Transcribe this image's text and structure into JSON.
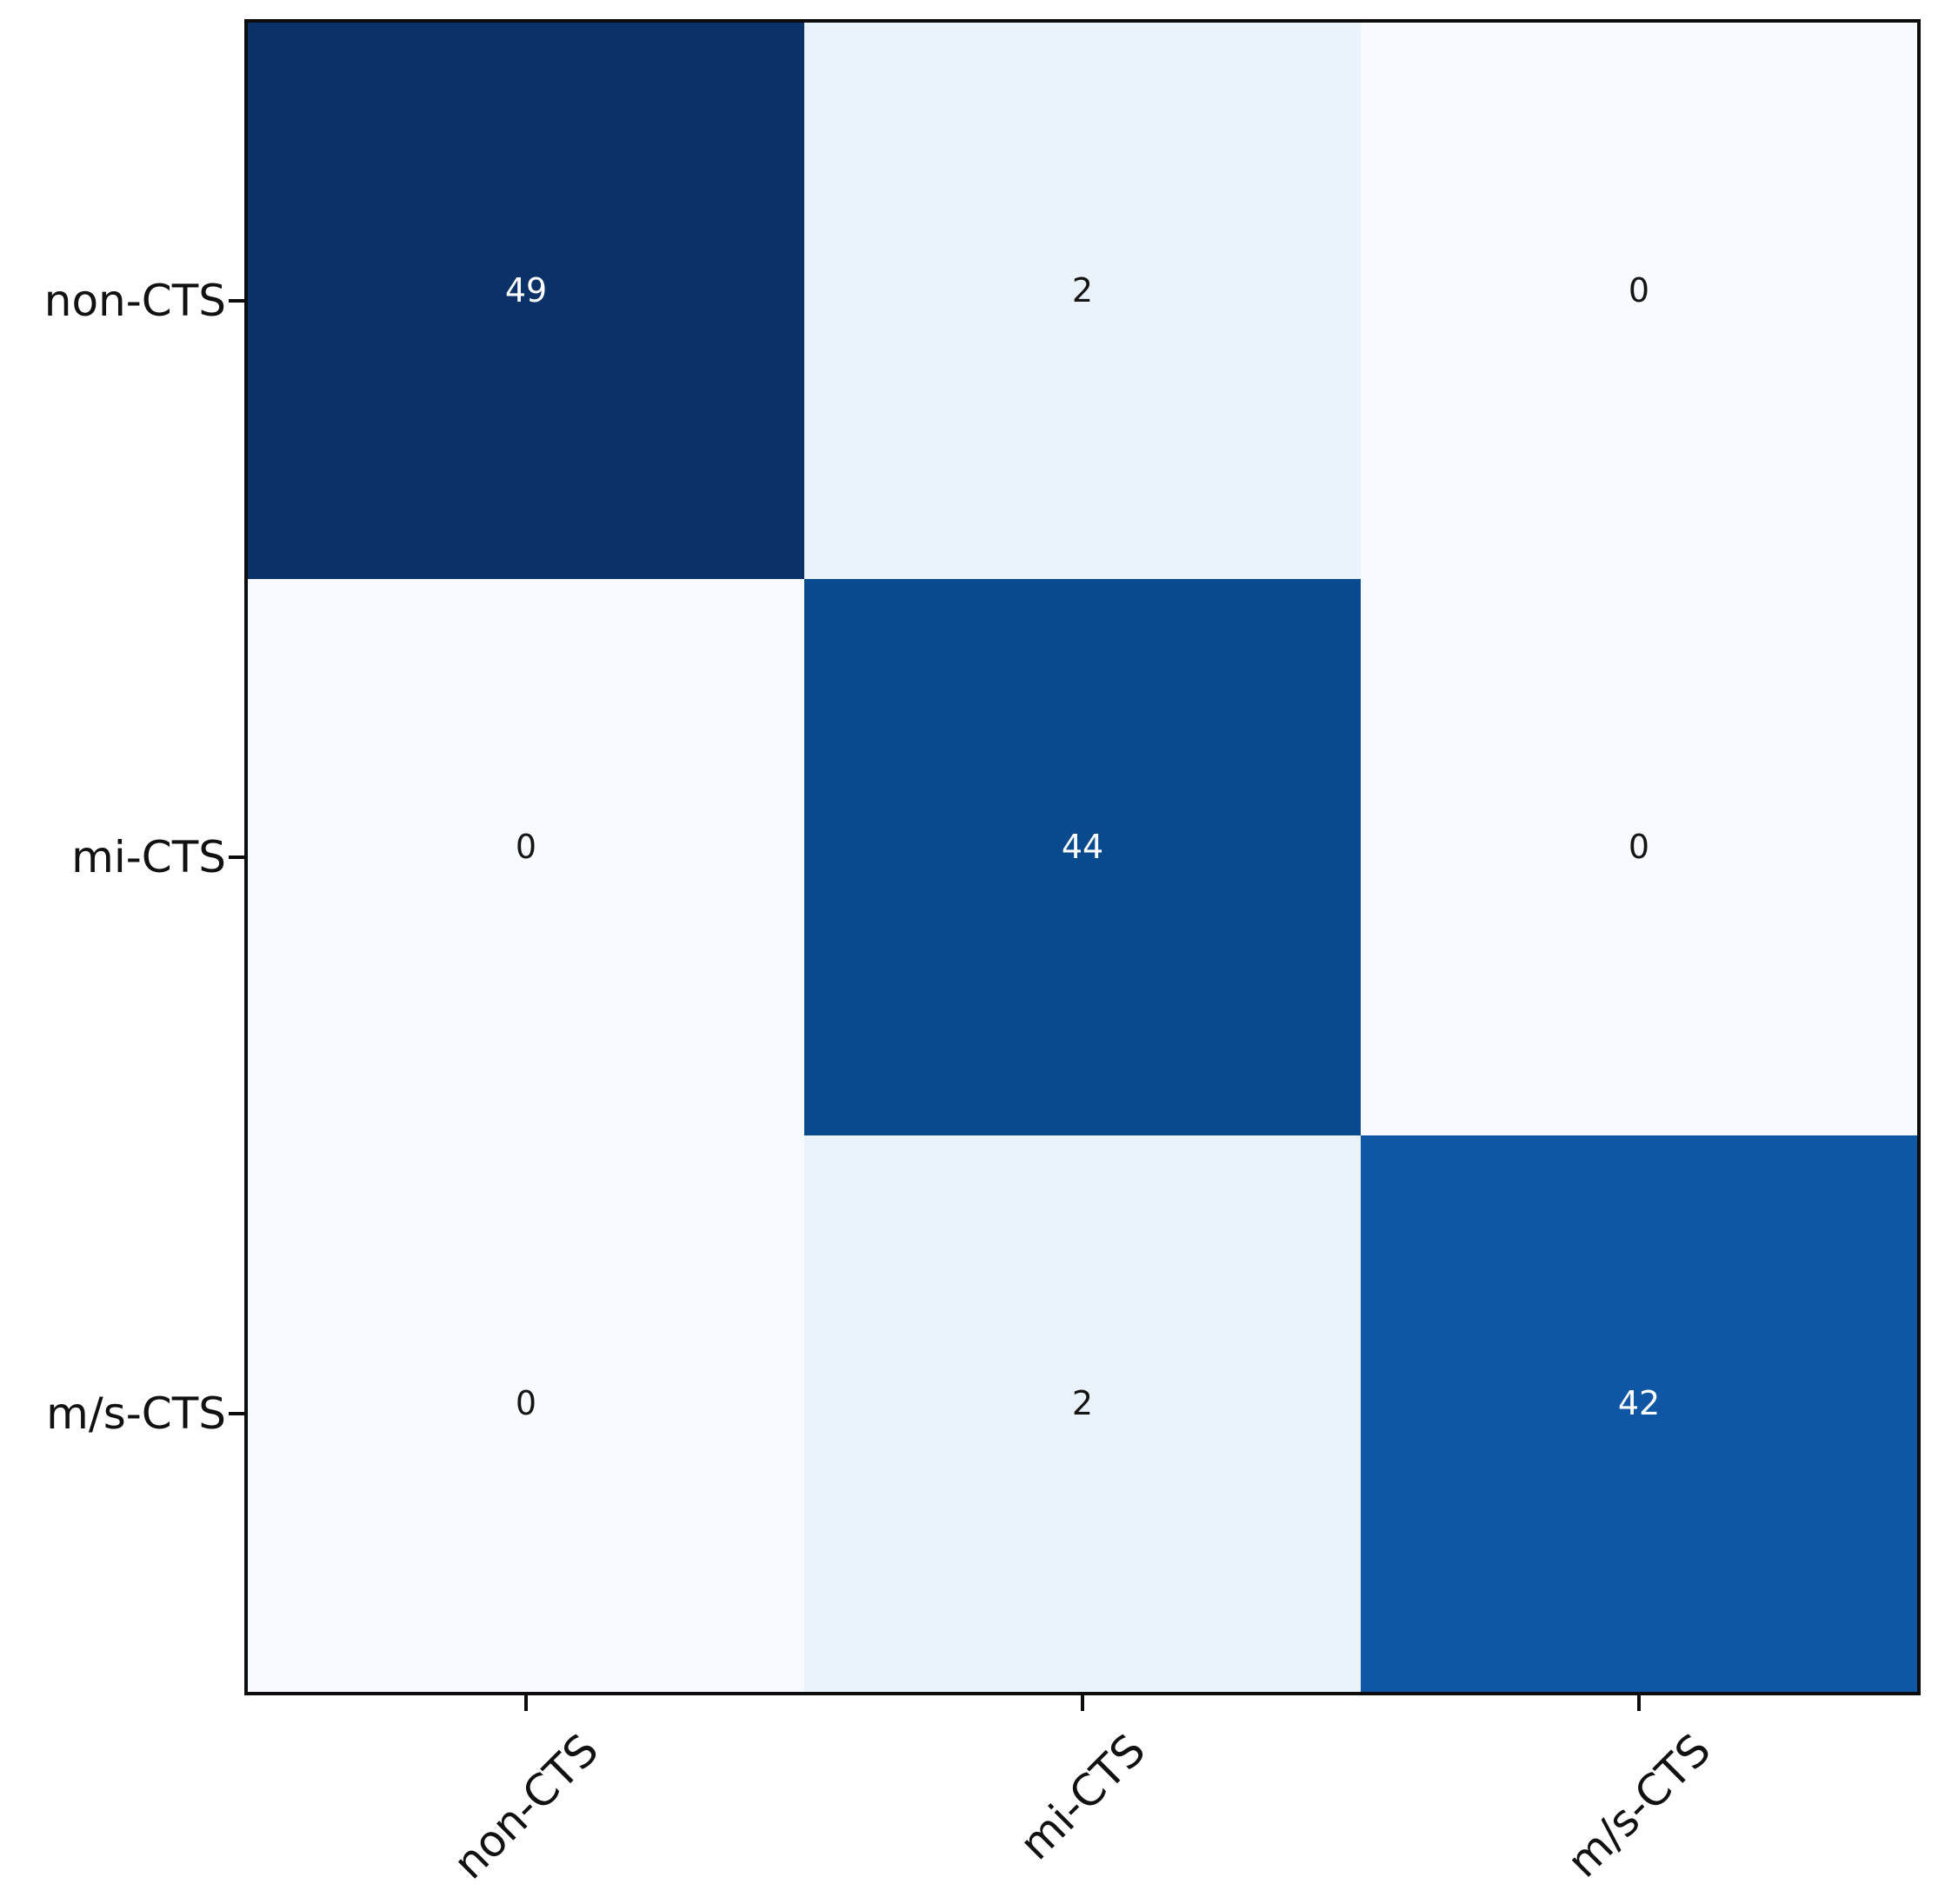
{
  "chart_data": {
    "type": "heatmap",
    "subtype": "confusion-matrix",
    "title": "",
    "xlabel": "",
    "ylabel": "",
    "x_categories": [
      "non-CTS",
      "mi-CTS",
      "m/s-CTS"
    ],
    "y_categories": [
      "non-CTS",
      "mi-CTS",
      "m/s-CTS"
    ],
    "matrix": [
      [
        49,
        2,
        0
      ],
      [
        0,
        44,
        0
      ],
      [
        0,
        2,
        42
      ]
    ],
    "vmin": 0,
    "vmax": 49,
    "colormap": "Blues",
    "legend": "none",
    "grid": false,
    "x_tick_rotation_deg": 45,
    "cell_colors": [
      [
        "#0b3268",
        "#eaf2fb",
        "#f7fbff"
      ],
      [
        "#f7fbff",
        "#094a8f",
        "#f7fbff"
      ],
      [
        "#f7fbff",
        "#eaf2fb",
        "#0f56a4"
      ]
    ],
    "text_colors": [
      [
        "#ffffff",
        "#151515",
        "#151515"
      ],
      [
        "#151515",
        "#ffffff",
        "#151515"
      ],
      [
        "#151515",
        "#151515",
        "#ffffff"
      ]
    ],
    "spine_color": "#0d0d0d"
  }
}
